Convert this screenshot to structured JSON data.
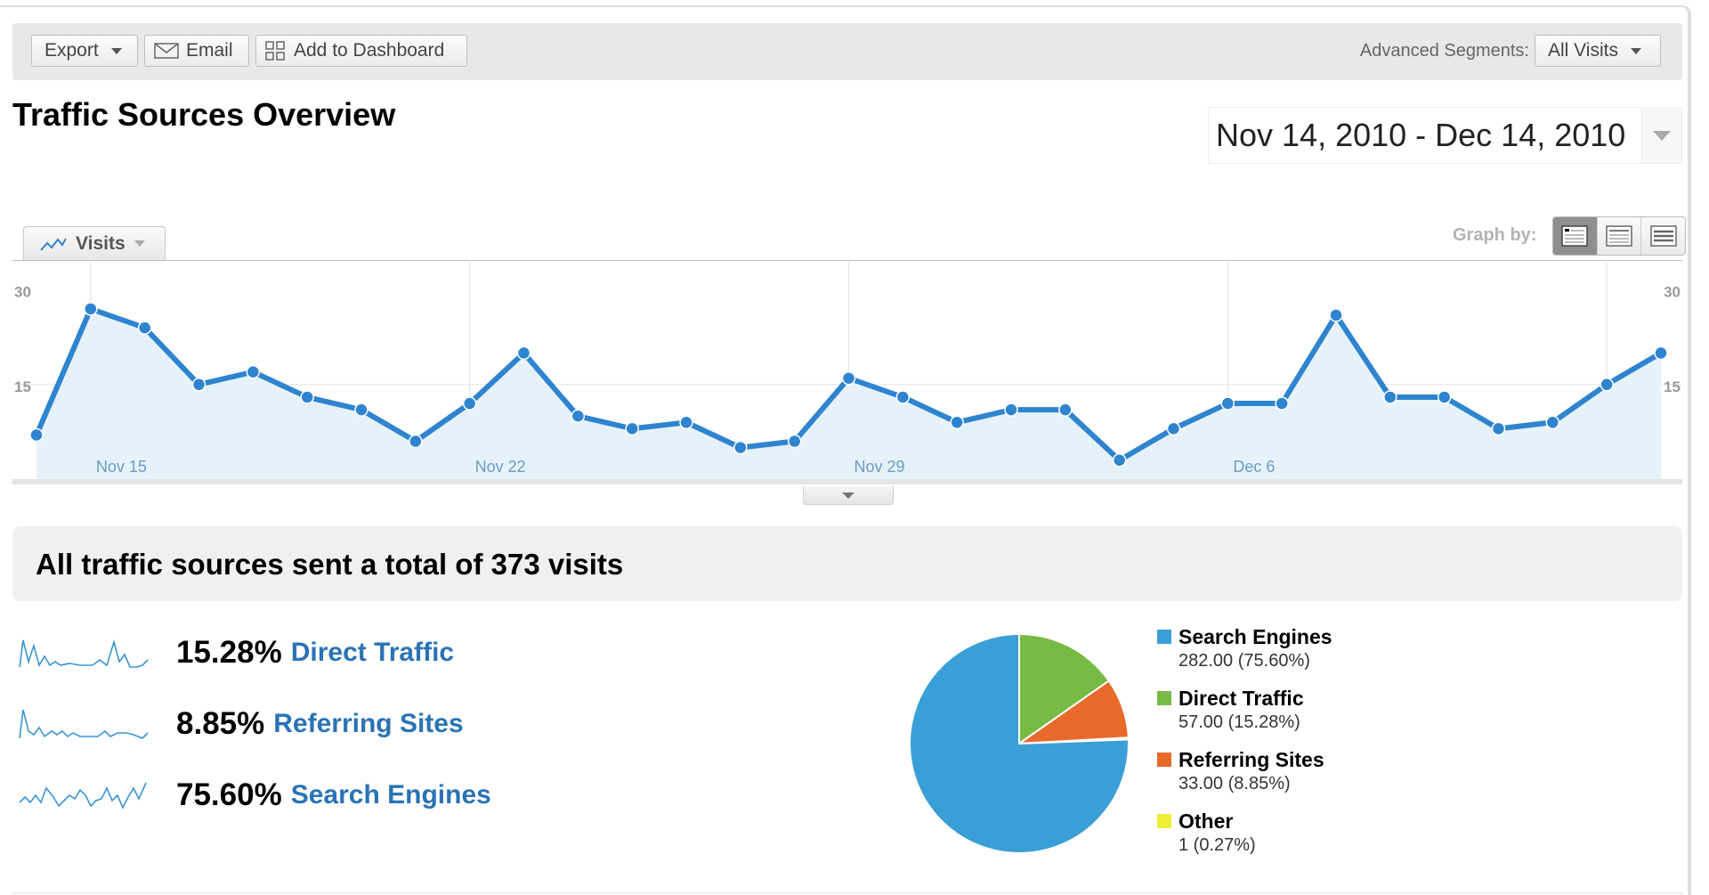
{
  "toolbar": {
    "export_label": "Export",
    "email_label": "Email",
    "add_dashboard_label": "Add to Dashboard",
    "segments_label": "Advanced Segments:",
    "segments_value": "All Visits"
  },
  "page": {
    "title": "Traffic Sources Overview",
    "date_range": "Nov 14, 2010 - Dec 14, 2010"
  },
  "graph": {
    "metric_label": "Visits",
    "graph_by_label": "Graph by:",
    "graph_by_options": [
      "day",
      "week",
      "month"
    ],
    "graph_by_selected": "day",
    "y_ticks_left": [
      "30",
      "15"
    ],
    "y_ticks_right": [
      "30",
      "15"
    ],
    "x_labels": [
      "Nov 15",
      "Nov 22",
      "Nov 29",
      "Dec 6"
    ],
    "line_color": "#2f84cf",
    "fill_color": "#e6f2fa"
  },
  "summary": {
    "text": "All traffic sources sent a total of 373 visits"
  },
  "sources": [
    {
      "percent": "15.28%",
      "label": "Direct Traffic"
    },
    {
      "percent": "8.85%",
      "label": "Referring Sites"
    },
    {
      "percent": "75.60%",
      "label": "Search Engines"
    }
  ],
  "legend": [
    {
      "name": "Search Engines",
      "value": "282.00 (75.60%)",
      "color": "#3a9fd6"
    },
    {
      "name": "Direct Traffic",
      "value": "57.00 (15.28%)",
      "color": "#77bb44"
    },
    {
      "name": "Referring Sites",
      "value": "33.00 (8.85%)",
      "color": "#e86a2b"
    },
    {
      "name": "Other",
      "value": "1 (0.27%)",
      "color": "#eeee33"
    }
  ],
  "chart_data": [
    {
      "type": "area",
      "title": "Visits",
      "xlabel": "",
      "ylabel": "Visits",
      "ylim": [
        0,
        30
      ],
      "grid": true,
      "x": [
        "Nov 14",
        "Nov 15",
        "Nov 16",
        "Nov 17",
        "Nov 18",
        "Nov 19",
        "Nov 20",
        "Nov 21",
        "Nov 22",
        "Nov 23",
        "Nov 24",
        "Nov 25",
        "Nov 26",
        "Nov 27",
        "Nov 28",
        "Nov 29",
        "Nov 30",
        "Dec 1",
        "Dec 2",
        "Dec 3",
        "Dec 4",
        "Dec 5",
        "Dec 6",
        "Dec 7",
        "Dec 8",
        "Dec 9",
        "Dec 10",
        "Dec 11",
        "Dec 12",
        "Dec 13",
        "Dec 14"
      ],
      "values": [
        7,
        27,
        24,
        15,
        17,
        13,
        11,
        6,
        12,
        20,
        10,
        8,
        9,
        5,
        6,
        16,
        13,
        9,
        11,
        11,
        3,
        8,
        12,
        12,
        26,
        13,
        13,
        8,
        9,
        15,
        20
      ],
      "tick_labels_x": [
        "Nov 15",
        "Nov 22",
        "Nov 29",
        "Dec 6"
      ],
      "tick_labels_y": [
        "15",
        "30"
      ]
    },
    {
      "type": "pie",
      "title": "",
      "categories": [
        "Search Engines",
        "Direct Traffic",
        "Referring Sites",
        "Other"
      ],
      "values": [
        282,
        57,
        33,
        1
      ],
      "percentages": [
        75.6,
        15.28,
        8.85,
        0.27
      ],
      "legend_position": "right"
    }
  ]
}
